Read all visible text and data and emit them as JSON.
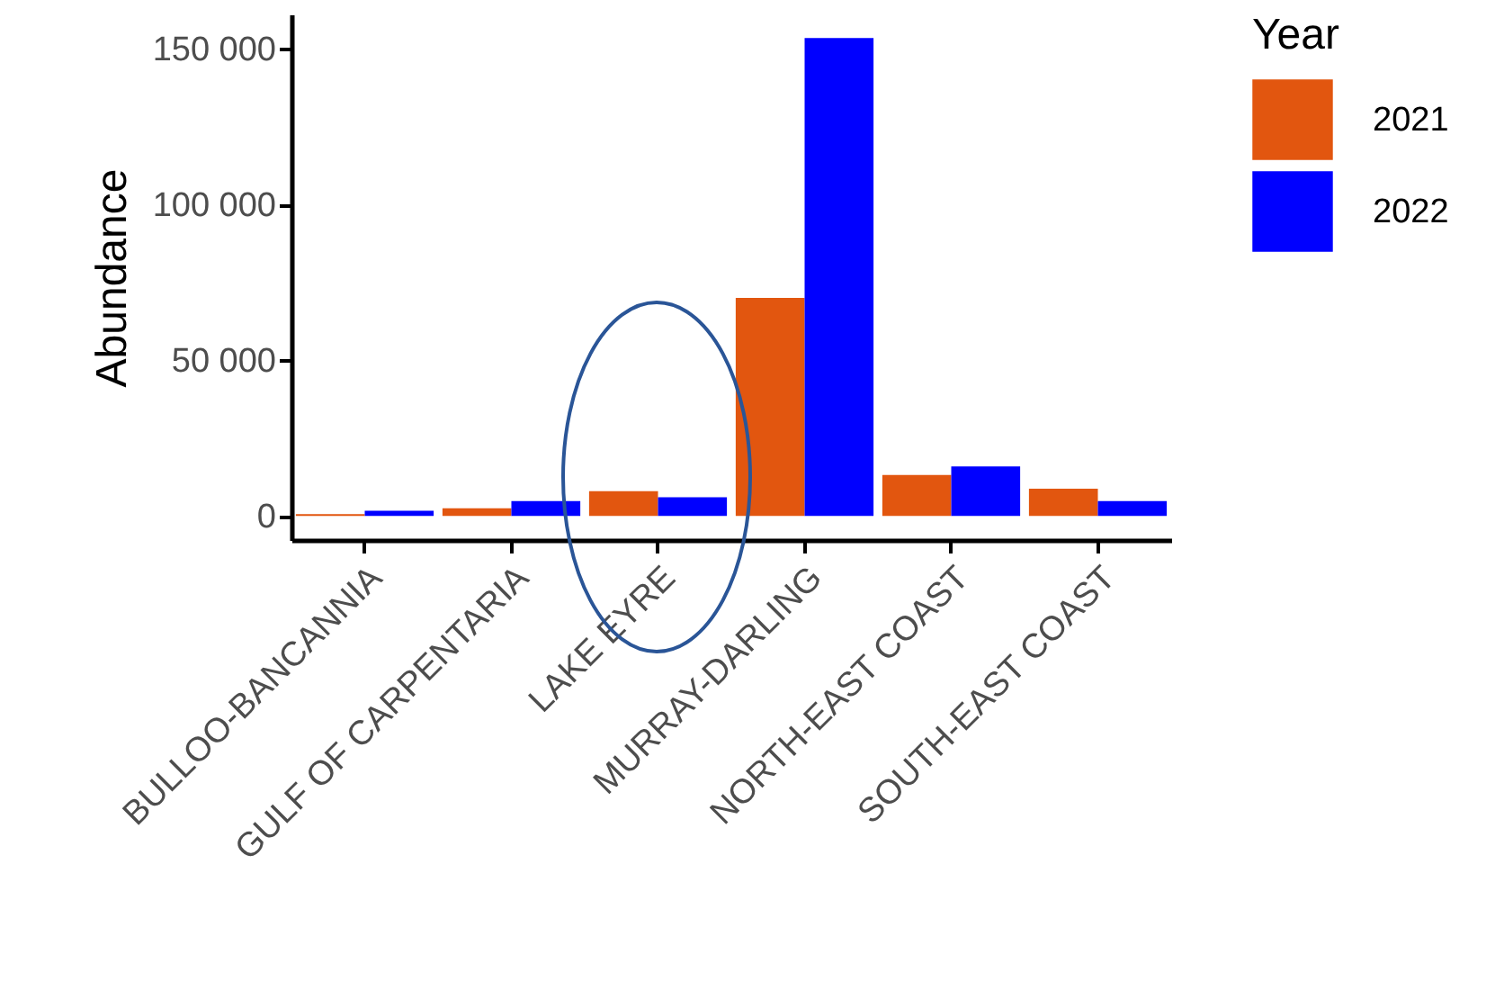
{
  "chart_data": {
    "type": "bar",
    "ylabel": "Abundance",
    "legend_title": "Year",
    "categories": [
      "BULLOO-BANCANNIA",
      "GULF OF CARPENTARIA",
      "LAKE EYRE",
      "MURRAY-DARLING",
      "NORTH-EAST COAST",
      "SOUTH-EAST COAST"
    ],
    "series": [
      {
        "name": "2021",
        "color": "#e2560f",
        "values": [
          600,
          2500,
          8000,
          70000,
          13200,
          8800
        ]
      },
      {
        "name": "2022",
        "color": "#0000ff",
        "values": [
          1700,
          4800,
          6000,
          153400,
          15900,
          4800
        ]
      }
    ],
    "ylim": [
      -7700,
      161000
    ],
    "yticks": [
      0,
      {
        "value": 50000,
        "label": "50 000"
      },
      {
        "value": 100000,
        "label": "100 000"
      },
      {
        "value": 150000,
        "label": "150 000"
      }
    ],
    "grid": false,
    "legend": "right"
  }
}
